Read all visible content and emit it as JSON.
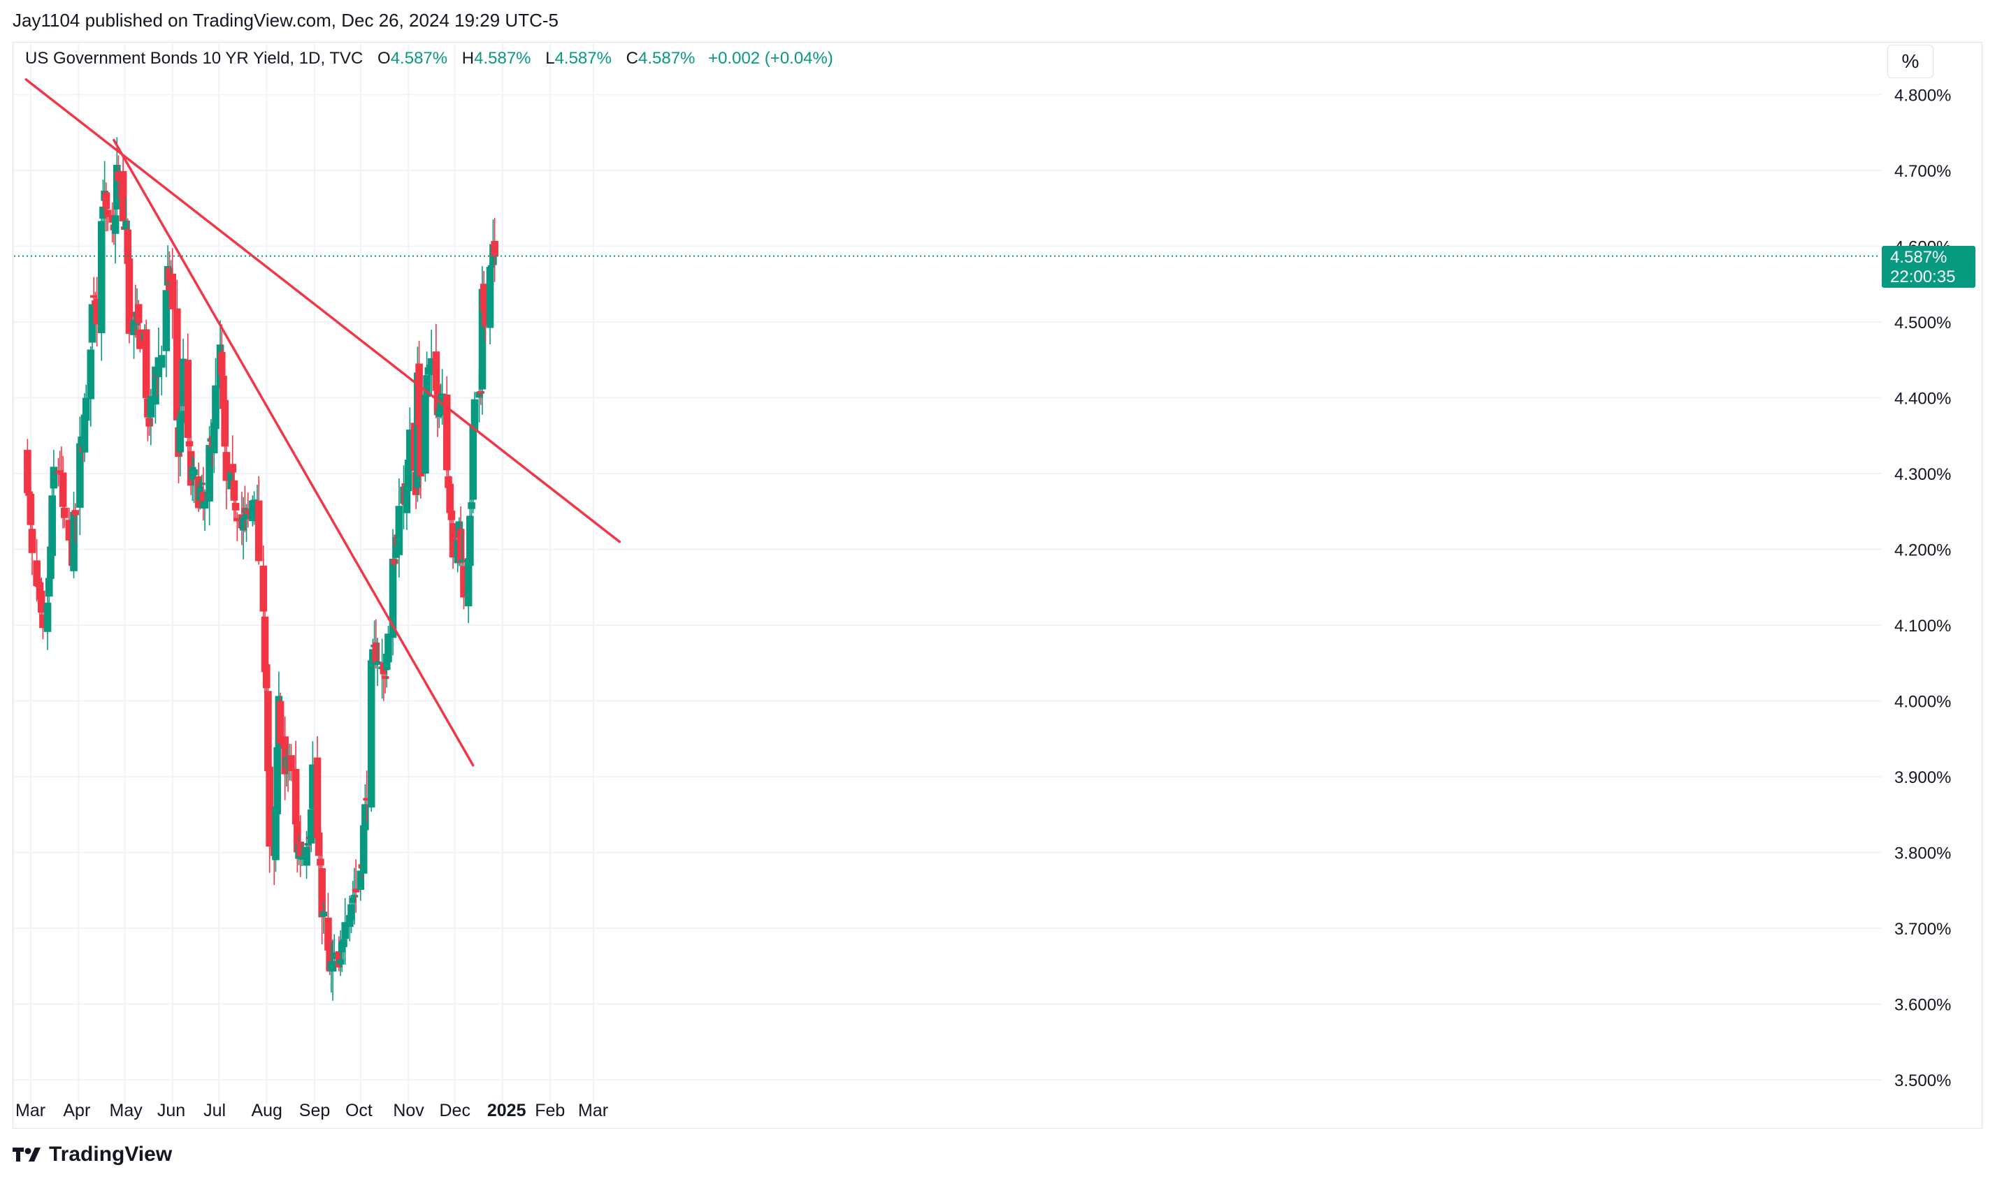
{
  "header": {
    "published": "Jay1104 published on TradingView.com, Dec 26, 2024 19:29 UTC-5"
  },
  "symbol": {
    "name": "US Government Bonds 10 YR Yield, 1D, TVC",
    "open_label": "O",
    "open": "4.587%",
    "high_label": "H",
    "high": "4.587%",
    "low_label": "L",
    "low": "4.587%",
    "close_label": "C",
    "close": "4.587%",
    "change": "+0.002 (+0.04%)"
  },
  "scale_button": "%",
  "price_badge": {
    "price": "4.587%",
    "countdown": "22:00:35"
  },
  "footer": {
    "brand": "TradingView"
  },
  "colors": {
    "up": "#089981",
    "down": "#f23645",
    "trendline": "#f23645",
    "grid": "#f0f3fa"
  },
  "chart_data": {
    "type": "candlestick",
    "yticks": [
      "4.800%",
      "4.700%",
      "4.600%",
      "4.500%",
      "4.400%",
      "4.300%",
      "4.200%",
      "4.100%",
      "4.000%",
      "3.900%",
      "3.800%",
      "3.700%",
      "3.600%",
      "3.500%"
    ],
    "ylim": [
      3.47,
      4.85
    ],
    "xticks": [
      "Mar",
      "Apr",
      "May",
      "Jun",
      "Jul",
      "Aug",
      "Sep",
      "Oct",
      "Nov",
      "Dec",
      "2025",
      "Feb",
      "Mar"
    ],
    "xtick_bold": [
      false,
      false,
      false,
      false,
      false,
      false,
      false,
      false,
      false,
      false,
      true,
      false,
      false
    ],
    "last_price": 4.587,
    "anchors": [
      [
        "2024-02-27",
        4.3
      ],
      [
        "2024-03-01",
        4.18
      ],
      [
        "2024-03-05",
        4.13
      ],
      [
        "2024-03-08",
        4.08
      ],
      [
        "2024-03-12",
        4.15
      ],
      [
        "2024-03-15",
        4.3
      ],
      [
        "2024-03-19",
        4.31
      ],
      [
        "2024-03-22",
        4.22
      ],
      [
        "2024-03-27",
        4.2
      ],
      [
        "2024-04-01",
        4.32
      ],
      [
        "2024-04-05",
        4.38
      ],
      [
        "2024-04-10",
        4.55
      ],
      [
        "2024-04-12",
        4.52
      ],
      [
        "2024-04-16",
        4.67
      ],
      [
        "2024-04-19",
        4.62
      ],
      [
        "2024-04-23",
        4.61
      ],
      [
        "2024-04-25",
        4.7
      ],
      [
        "2024-04-29",
        4.62
      ],
      [
        "2024-05-01",
        4.63
      ],
      [
        "2024-05-03",
        4.5
      ],
      [
        "2024-05-08",
        4.49
      ],
      [
        "2024-05-13",
        4.48
      ],
      [
        "2024-05-15",
        4.35
      ],
      [
        "2024-05-20",
        4.44
      ],
      [
        "2024-05-24",
        4.46
      ],
      [
        "2024-05-28",
        4.55
      ],
      [
        "2024-05-30",
        4.55
      ],
      [
        "2024-06-04",
        4.33
      ],
      [
        "2024-06-07",
        4.43
      ],
      [
        "2024-06-12",
        4.29
      ],
      [
        "2024-06-17",
        4.28
      ],
      [
        "2024-06-21",
        4.25
      ],
      [
        "2024-06-28",
        4.4
      ],
      [
        "2024-07-01",
        4.46
      ],
      [
        "2024-07-05",
        4.28
      ],
      [
        "2024-07-10",
        4.28
      ],
      [
        "2024-07-15",
        4.23
      ],
      [
        "2024-07-19",
        4.24
      ],
      [
        "2024-07-24",
        4.28
      ],
      [
        "2024-07-26",
        4.19
      ],
      [
        "2024-07-31",
        4.03
      ],
      [
        "2024-08-02",
        3.79
      ],
      [
        "2024-08-05",
        3.78
      ],
      [
        "2024-08-08",
        3.99
      ],
      [
        "2024-08-12",
        3.9
      ],
      [
        "2024-08-15",
        3.92
      ],
      [
        "2024-08-20",
        3.81
      ],
      [
        "2024-08-23",
        3.8
      ],
      [
        "2024-08-28",
        3.84
      ],
      [
        "2024-08-30",
        3.91
      ],
      [
        "2024-09-04",
        3.76
      ],
      [
        "2024-09-06",
        3.71
      ],
      [
        "2024-09-10",
        3.64
      ],
      [
        "2024-09-13",
        3.65
      ],
      [
        "2024-09-17",
        3.64
      ],
      [
        "2024-09-20",
        3.73
      ],
      [
        "2024-09-24",
        3.74
      ],
      [
        "2024-09-27",
        3.75
      ],
      [
        "2024-09-30",
        3.78
      ],
      [
        "2024-10-03",
        3.85
      ],
      [
        "2024-10-07",
        4.03
      ],
      [
        "2024-10-10",
        4.07
      ],
      [
        "2024-10-15",
        4.03
      ],
      [
        "2024-10-18",
        4.08
      ],
      [
        "2024-10-22",
        4.2
      ],
      [
        "2024-10-25",
        4.24
      ],
      [
        "2024-10-29",
        4.27
      ],
      [
        "2024-11-01",
        4.37
      ],
      [
        "2024-11-05",
        4.27
      ],
      [
        "2024-11-06",
        4.43
      ],
      [
        "2024-11-08",
        4.31
      ],
      [
        "2024-11-12",
        4.43
      ],
      [
        "2024-11-15",
        4.43
      ],
      [
        "2024-11-19",
        4.4
      ],
      [
        "2024-11-22",
        4.41
      ],
      [
        "2024-11-26",
        4.3
      ],
      [
        "2024-11-29",
        4.18
      ],
      [
        "2024-12-03",
        4.23
      ],
      [
        "2024-12-06",
        4.15
      ],
      [
        "2024-12-10",
        4.22
      ],
      [
        "2024-12-13",
        4.4
      ],
      [
        "2024-12-17",
        4.39
      ],
      [
        "2024-12-18",
        4.52
      ],
      [
        "2024-12-20",
        4.52
      ],
      [
        "2024-12-24",
        4.59
      ],
      [
        "2024-12-26",
        4.587
      ]
    ],
    "trendlines": [
      {
        "from": [
          "2024-02-26",
          4.82
        ],
        "to": [
          "2025-03-17",
          4.21
        ]
      },
      {
        "from": [
          "2024-04-23",
          4.74
        ],
        "to": [
          "2024-12-12",
          3.915
        ]
      }
    ]
  }
}
